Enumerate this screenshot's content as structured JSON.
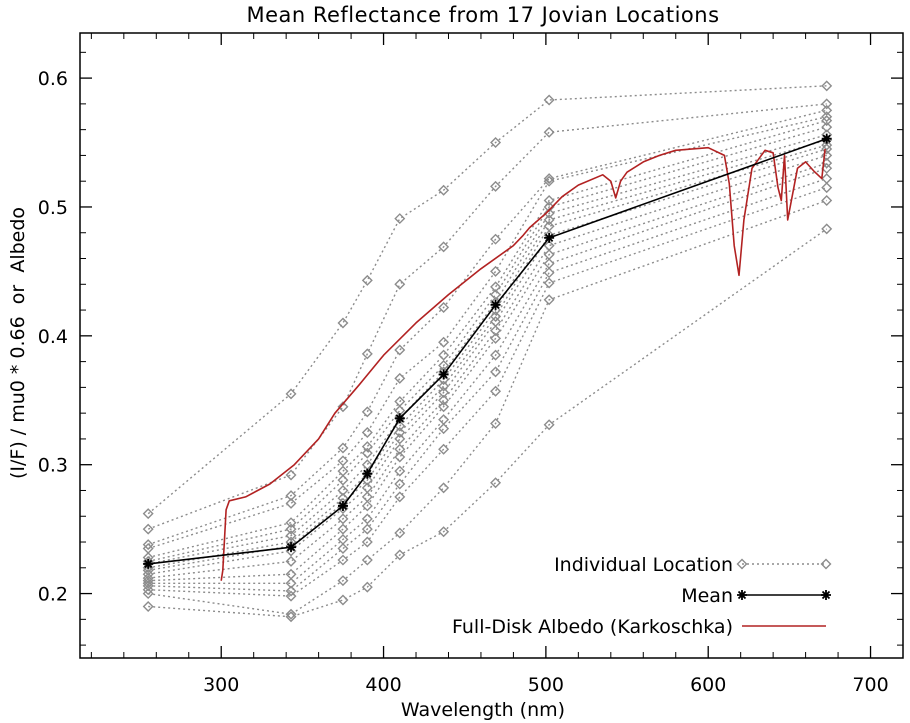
{
  "chart_data": {
    "type": "line",
    "title": "Mean Reflectance from 17 Jovian Locations",
    "xlabel": "Wavelength (nm)",
    "ylabel": "(I/F) / mu0 * 0.66  or  Albedo",
    "xlim": [
      213,
      720
    ],
    "ylim": [
      0.15,
      0.635
    ],
    "x_ticks": [
      300,
      400,
      500,
      600,
      700
    ],
    "y_ticks": [
      0.2,
      0.3,
      0.4,
      0.5,
      0.6
    ],
    "grid": false,
    "legend_position": "bottom-right",
    "colors": {
      "individual": "#8c8c8c",
      "mean": "#000000",
      "albedo": "#b22222"
    },
    "filter_wavelengths": [
      255,
      343,
      375,
      390,
      410,
      437,
      469,
      502,
      673
    ],
    "series": [
      {
        "name": "Individual Location",
        "style": "dotted-diamond",
        "color": "#8c8c8c",
        "groups": [
          {
            "values": [
              0.262,
              0.355,
              0.41,
              0.443,
              0.491,
              0.513,
              0.55,
              0.583,
              0.594
            ]
          },
          {
            "values": [
              0.25,
              0.292,
              0.345,
              0.386,
              0.44,
              0.469,
              0.516,
              0.558,
              0.58
            ]
          },
          {
            "values": [
              0.238,
              0.276,
              0.313,
              0.341,
              0.389,
              0.422,
              0.475,
              0.522,
              0.575
            ]
          },
          {
            "values": [
              0.235,
              0.27,
              0.303,
              0.325,
              0.367,
              0.395,
              0.45,
              0.52,
              0.57
            ]
          },
          {
            "values": [
              0.228,
              0.255,
              0.295,
              0.314,
              0.349,
              0.385,
              0.438,
              0.505,
              0.567
            ]
          },
          {
            "values": [
              0.225,
              0.25,
              0.288,
              0.309,
              0.342,
              0.377,
              0.432,
              0.5,
              0.562
            ]
          },
          {
            "values": [
              0.223,
              0.245,
              0.28,
              0.3,
              0.336,
              0.372,
              0.426,
              0.495,
              0.556
            ]
          },
          {
            "values": [
              0.22,
              0.24,
              0.274,
              0.293,
              0.33,
              0.366,
              0.42,
              0.49,
              0.552
            ]
          },
          {
            "values": [
              0.218,
              0.237,
              0.27,
              0.288,
              0.325,
              0.361,
              0.415,
              0.485,
              0.548
            ]
          },
          {
            "values": [
              0.215,
              0.233,
              0.266,
              0.282,
              0.32,
              0.356,
              0.411,
              0.478,
              0.545
            ]
          },
          {
            "values": [
              0.212,
              0.225,
              0.258,
              0.275,
              0.312,
              0.35,
              0.404,
              0.47,
              0.54
            ]
          },
          {
            "values": [
              0.21,
              0.215,
              0.25,
              0.268,
              0.306,
              0.345,
              0.398,
              0.463,
              0.534
            ]
          },
          {
            "values": [
              0.208,
              0.208,
              0.242,
              0.258,
              0.295,
              0.335,
              0.385,
              0.456,
              0.53
            ]
          },
          {
            "values": [
              0.206,
              0.202,
              0.235,
              0.25,
              0.285,
              0.328,
              0.372,
              0.449,
              0.522
            ]
          },
          {
            "values": [
              0.203,
              0.198,
              0.226,
              0.24,
              0.275,
              0.312,
              0.357,
              0.441,
              0.515
            ]
          },
          {
            "values": [
              0.2,
              0.184,
              0.21,
              0.226,
              0.247,
              0.282,
              0.332,
              0.428,
              0.505
            ]
          },
          {
            "values": [
              0.19,
              0.182,
              0.195,
              0.205,
              0.23,
              0.248,
              0.286,
              0.331,
              0.483
            ]
          }
        ]
      },
      {
        "name": "Mean",
        "style": "solid-asterisk",
        "color": "#000000",
        "values": [
          0.223,
          0.236,
          0.268,
          0.293,
          0.336,
          0.37,
          0.424,
          0.476,
          0.553
        ]
      },
      {
        "name": "Full-Disk Albedo (Karkoschka)",
        "style": "solid",
        "color": "#b22222",
        "x": [
          300,
          301,
          303,
          305,
          315,
          330,
          345,
          360,
          370,
          385,
          400,
          420,
          440,
          460,
          480,
          486,
          490,
          500,
          510,
          520,
          535,
          540,
          543,
          546,
          550,
          560,
          570,
          580,
          600,
          610,
          613,
          616,
          619,
          622,
          627,
          635,
          640,
          643,
          645,
          647,
          649,
          655,
          660,
          665,
          670,
          672
        ],
        "values": [
          0.21,
          0.218,
          0.265,
          0.272,
          0.275,
          0.285,
          0.3,
          0.32,
          0.34,
          0.362,
          0.385,
          0.41,
          0.432,
          0.452,
          0.47,
          0.478,
          0.484,
          0.495,
          0.508,
          0.517,
          0.525,
          0.52,
          0.507,
          0.52,
          0.527,
          0.535,
          0.54,
          0.544,
          0.546,
          0.54,
          0.518,
          0.47,
          0.447,
          0.49,
          0.53,
          0.544,
          0.542,
          0.515,
          0.505,
          0.54,
          0.49,
          0.53,
          0.535,
          0.528,
          0.522,
          0.545
        ]
      }
    ]
  }
}
